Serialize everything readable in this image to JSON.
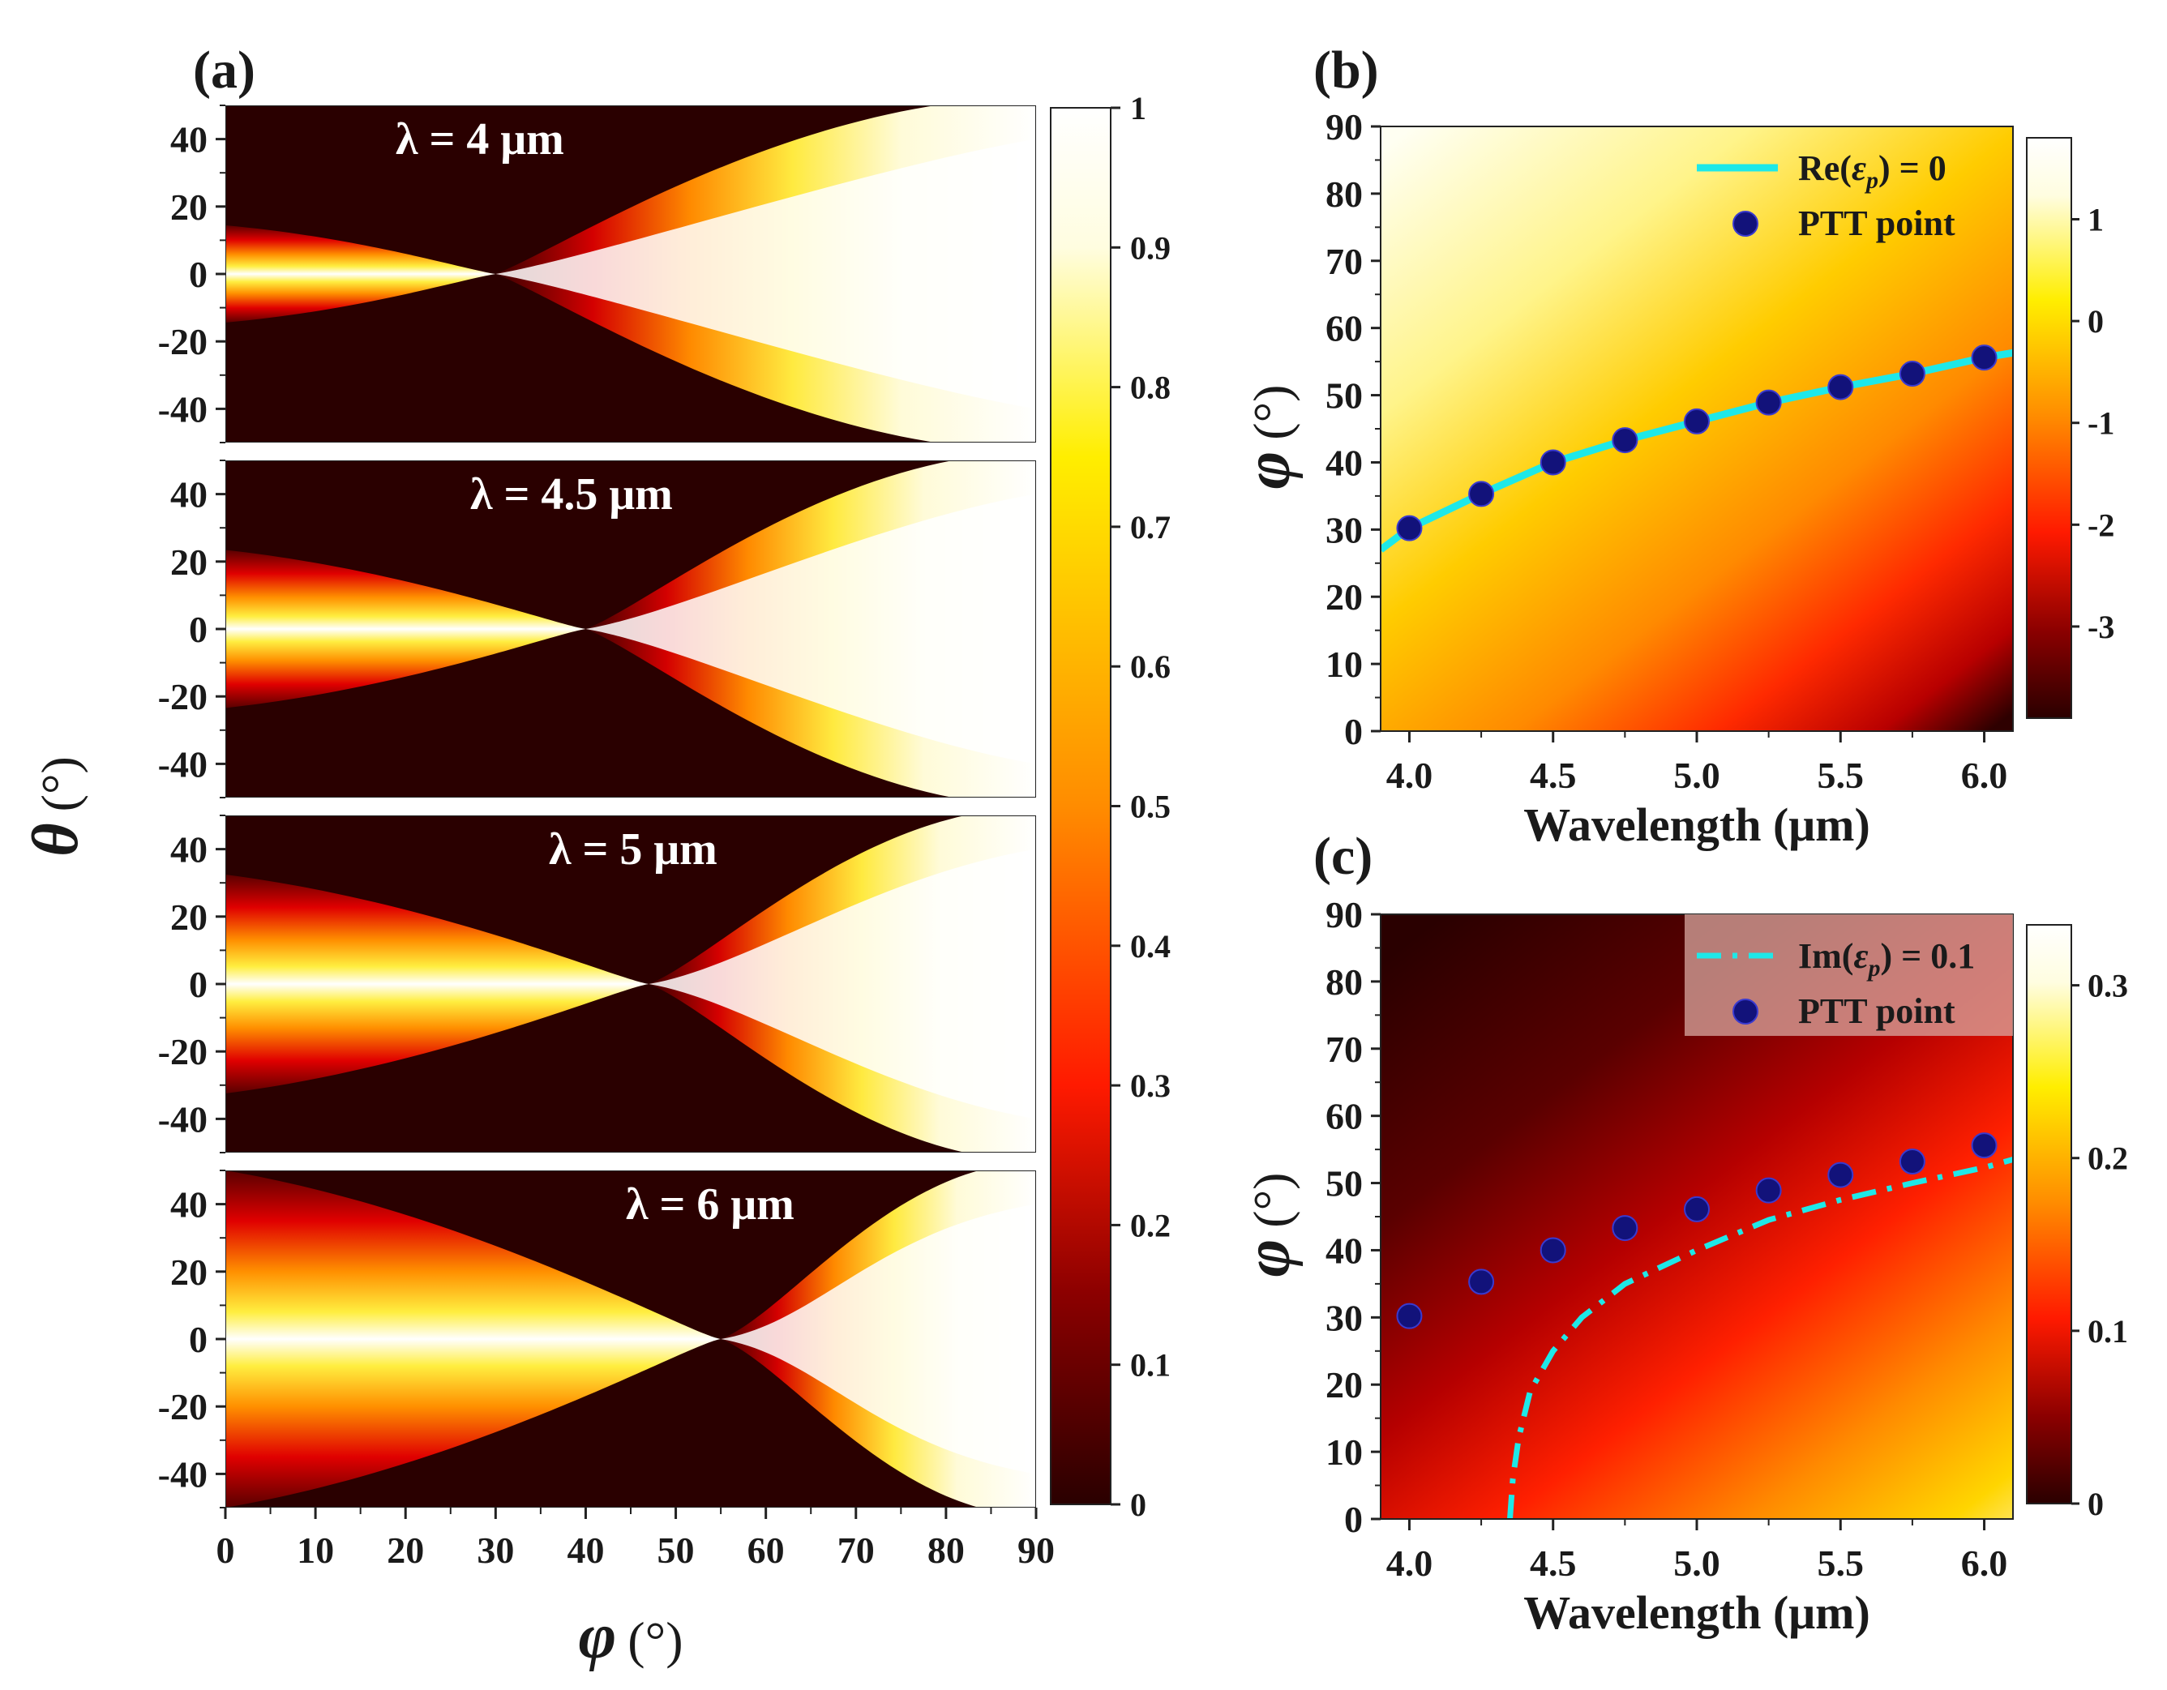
{
  "panels": {
    "a": {
      "label": "(a)"
    },
    "b": {
      "label": "(b)"
    },
    "c": {
      "label": "(c)"
    }
  },
  "colors": {
    "colormap": [
      "#2a0000",
      "#8b0000",
      "#ff1a00",
      "#ff8c00",
      "#ffee00",
      "#fffde0",
      "#ffffff"
    ],
    "curve": "#1ee8e8",
    "marker": "#12127a"
  },
  "chart_data": [
    {
      "id": "a",
      "type": "heatmap",
      "title": "",
      "xlabel": "φ (°)",
      "xlabel_symbol": "φ",
      "ylabel": "θ (°)",
      "ylabel_symbol": "θ",
      "unit": "(°)",
      "xlim": [
        0,
        90
      ],
      "ylim": [
        -50,
        50
      ],
      "xticks": [
        0,
        10,
        20,
        30,
        40,
        50,
        60,
        70,
        80,
        90
      ],
      "yticks": [
        40,
        20,
        0,
        -20,
        -40
      ],
      "colorbar": {
        "range": [
          0,
          1
        ],
        "ticks": [
          1,
          0.9,
          0.8,
          0.7,
          0.6,
          0.5,
          0.4,
          0.3,
          0.2,
          0.1,
          0
        ]
      },
      "subplots": [
        {
          "label": "λ = 4 μm",
          "wavelength_um": 4,
          "crossing_phi_deg": 30
        },
        {
          "label": "λ = 4.5 μm",
          "wavelength_um": 4.5,
          "crossing_phi_deg": 40
        },
        {
          "label": "λ = 5 μm",
          "wavelength_um": 5,
          "crossing_phi_deg": 47
        },
        {
          "label": "λ = 6 μm",
          "wavelength_um": 6,
          "crossing_phi_deg": 55
        }
      ]
    },
    {
      "id": "b",
      "type": "heatmap",
      "xlabel": "Wavelength (μm)",
      "ylabel": "φ (°)",
      "ylabel_symbol": "φ",
      "unit": "(°)",
      "xlim": [
        3.9,
        6.1
      ],
      "ylim": [
        0,
        90
      ],
      "xticks": [
        4.0,
        4.5,
        5.0,
        5.5,
        6.0
      ],
      "xticklabels": [
        "4.0",
        "4.5",
        "5.0",
        "5.5",
        "6.0"
      ],
      "yticks": [
        90,
        80,
        70,
        60,
        50,
        40,
        30,
        20,
        10,
        0
      ],
      "colorbar": {
        "range": [
          -3.9,
          1.8
        ],
        "ticks": [
          1,
          0,
          -1,
          -2,
          -3
        ]
      },
      "curve": {
        "name": "Re(εp) = 0",
        "name_parts": [
          "Re(",
          "ε",
          "p",
          ") = 0"
        ],
        "style": "solid",
        "x": [
          3.9,
          4.0,
          4.25,
          4.5,
          4.75,
          5.0,
          5.25,
          5.5,
          5.75,
          6.0,
          6.1
        ],
        "y": [
          27,
          30.2,
          35.3,
          40,
          43.3,
          46.1,
          48.9,
          51.2,
          53.2,
          55.6,
          56.3
        ]
      },
      "points": {
        "name": "PTT point",
        "x": [
          4.0,
          4.25,
          4.5,
          4.75,
          5.0,
          5.25,
          5.5,
          5.75,
          6.0
        ],
        "y": [
          30.2,
          35.3,
          40,
          43.3,
          46.1,
          48.9,
          51.2,
          53.2,
          55.6
        ]
      },
      "legend_position": "top-right"
    },
    {
      "id": "c",
      "type": "heatmap",
      "xlabel": "Wavelength (μm)",
      "ylabel": "φ (°)",
      "ylabel_symbol": "φ",
      "unit": "(°)",
      "xlim": [
        3.9,
        6.1
      ],
      "ylim": [
        0,
        90
      ],
      "xticks": [
        4.0,
        4.5,
        5.0,
        5.5,
        6.0
      ],
      "xticklabels": [
        "4.0",
        "4.5",
        "5.0",
        "5.5",
        "6.0"
      ],
      "yticks": [
        90,
        80,
        70,
        60,
        50,
        40,
        30,
        20,
        10,
        0
      ],
      "colorbar": {
        "range": [
          0,
          0.335
        ],
        "ticks": [
          0.3,
          0.2,
          0.1,
          0
        ]
      },
      "curve": {
        "name": "Im(εp) = 0.1",
        "name_parts": [
          "Im(",
          "ε",
          "p",
          ") = 0.1"
        ],
        "style": "dashdot",
        "x": [
          4.35,
          4.36,
          4.38,
          4.42,
          4.5,
          4.6,
          4.75,
          5.0,
          5.25,
          5.5,
          5.75,
          6.0,
          6.1
        ],
        "y": [
          0,
          6,
          12,
          19,
          25,
          30,
          35,
          40,
          44.5,
          47.5,
          50,
          52.3,
          53.5
        ]
      },
      "points": {
        "name": "PTT point",
        "x": [
          4.0,
          4.25,
          4.5,
          4.75,
          5.0,
          5.25,
          5.5,
          5.75,
          6.0
        ],
        "y": [
          30.2,
          35.3,
          40,
          43.3,
          46.1,
          48.9,
          51.2,
          53.2,
          55.6
        ]
      },
      "legend_position": "top-right"
    }
  ]
}
